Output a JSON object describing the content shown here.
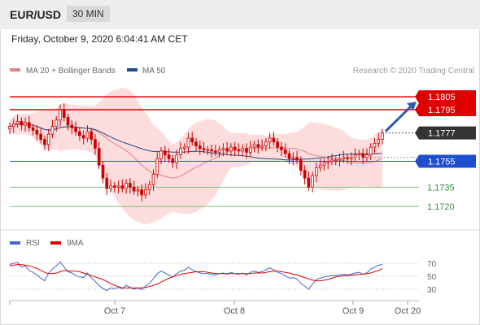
{
  "header": {
    "symbol": "EUR/USD",
    "timeframe": "30 MIN"
  },
  "timestamp": "Friday, October 9, 2020 6:04:41 AM CET",
  "legend": {
    "ma20_label": "MA 20 + Bollinger Bands",
    "ma50_label": "MA 50",
    "credit": "Research © 2020 Trading Central"
  },
  "colors": {
    "candle": "#cc0000",
    "bollinger_fill": "#fbd3d3",
    "ma20": "#e88080",
    "ma50": "#1f4a8c",
    "resistance": "#e00000",
    "pivot": "#1f4fd0",
    "support": "#79c479",
    "arrow": "#2d5fa8",
    "rsi": "#4466cc",
    "rsi_ma": "#dd0000"
  },
  "chart_data": [
    {
      "type": "candlestick",
      "ylim": [
        1.1705,
        1.1812
      ],
      "x_ticks": [
        "Oct 7",
        "Oct 8",
        "Oct 9",
        "Oct 20"
      ],
      "levels": [
        {
          "value": 1.1805,
          "label": "1.1805",
          "kind": "resistance"
        },
        {
          "value": 1.1795,
          "label": "1.1795",
          "kind": "resistance"
        },
        {
          "value": 1.1755,
          "label": "1.1755",
          "kind": "pivot"
        },
        {
          "value": 1.1735,
          "label": "1.1735",
          "kind": "support"
        },
        {
          "value": 1.172,
          "label": "1.1720",
          "kind": "support"
        }
      ],
      "current_price": {
        "value": 1.1777,
        "label": "1.1777"
      },
      "close": [
        1.1782,
        1.1784,
        1.1786,
        1.1783,
        1.1785,
        1.1781,
        1.1779,
        1.1776,
        1.1772,
        1.1768,
        1.1776,
        1.1782,
        1.1787,
        1.1795,
        1.1789,
        1.1783,
        1.1781,
        1.1778,
        1.1775,
        1.1773,
        1.1778,
        1.1772,
        1.1765,
        1.1752,
        1.1742,
        1.1734,
        1.1736,
        1.1735,
        1.1736,
        1.1734,
        1.1738,
        1.1735,
        1.1732,
        1.1733,
        1.1729,
        1.1733,
        1.1737,
        1.1745,
        1.1757,
        1.1763,
        1.176,
        1.1757,
        1.1754,
        1.176,
        1.1765,
        1.1766,
        1.1773,
        1.177,
        1.1767,
        1.1765,
        1.1764,
        1.1764,
        1.1763,
        1.1762,
        1.1764,
        1.1765,
        1.1763,
        1.1766,
        1.1764,
        1.1763,
        1.1765,
        1.1762,
        1.1766,
        1.1768,
        1.1766,
        1.1767,
        1.177,
        1.1773,
        1.177,
        1.1766,
        1.1764,
        1.1761,
        1.1757,
        1.1758,
        1.1756,
        1.1748,
        1.1742,
        1.1735,
        1.1744,
        1.175,
        1.1752,
        1.1754,
        1.1755,
        1.1756,
        1.1756,
        1.1757,
        1.1758,
        1.1757,
        1.1758,
        1.176,
        1.1761,
        1.1758,
        1.176,
        1.1766,
        1.1769,
        1.1772,
        1.1777
      ],
      "rsi": {
        "label": "RSI",
        "ma_label": "9MA",
        "ylim": [
          20,
          80
        ],
        "ticks": [
          70,
          50,
          30
        ],
        "rsi_values": [
          68,
          70,
          71,
          64,
          66,
          59,
          56,
          52,
          47,
          43,
          55,
          61,
          66,
          72,
          64,
          57,
          55,
          51,
          49,
          48,
          55,
          48,
          42,
          36,
          31,
          28,
          32,
          31,
          33,
          31,
          36,
          33,
          30,
          32,
          29,
          35,
          39,
          46,
          54,
          58,
          55,
          52,
          49,
          54,
          58,
          59,
          64,
          60,
          57,
          55,
          54,
          54,
          53,
          52,
          54,
          55,
          53,
          56,
          54,
          53,
          55,
          52,
          56,
          58,
          56,
          57,
          60,
          63,
          60,
          56,
          54,
          51,
          47,
          48,
          46,
          39,
          35,
          30,
          38,
          45,
          47,
          49,
          50,
          51,
          51,
          52,
          53,
          52,
          53,
          55,
          56,
          53,
          55,
          61,
          64,
          67,
          68
        ],
        "ma_values": [
          66,
          67,
          68,
          68,
          67,
          66,
          64,
          62,
          59,
          56,
          54,
          54,
          55,
          57,
          59,
          58,
          58,
          58,
          57,
          55,
          53,
          51,
          49,
          47,
          45,
          42,
          39,
          36,
          34,
          32,
          32,
          32,
          32,
          32,
          32,
          33,
          34,
          36,
          38,
          41,
          44,
          47,
          49,
          51,
          53,
          54,
          55,
          56,
          57,
          57,
          57,
          56,
          55,
          54,
          54,
          54,
          54,
          54,
          54,
          54,
          54,
          54,
          54,
          55,
          55,
          55,
          56,
          57,
          58,
          58,
          57,
          56,
          55,
          53,
          52,
          50,
          48,
          46,
          44,
          43,
          43,
          44,
          45,
          47,
          49,
          50,
          51,
          51,
          52,
          52,
          53,
          53,
          54,
          55,
          57,
          59,
          62
        ]
      }
    }
  ]
}
